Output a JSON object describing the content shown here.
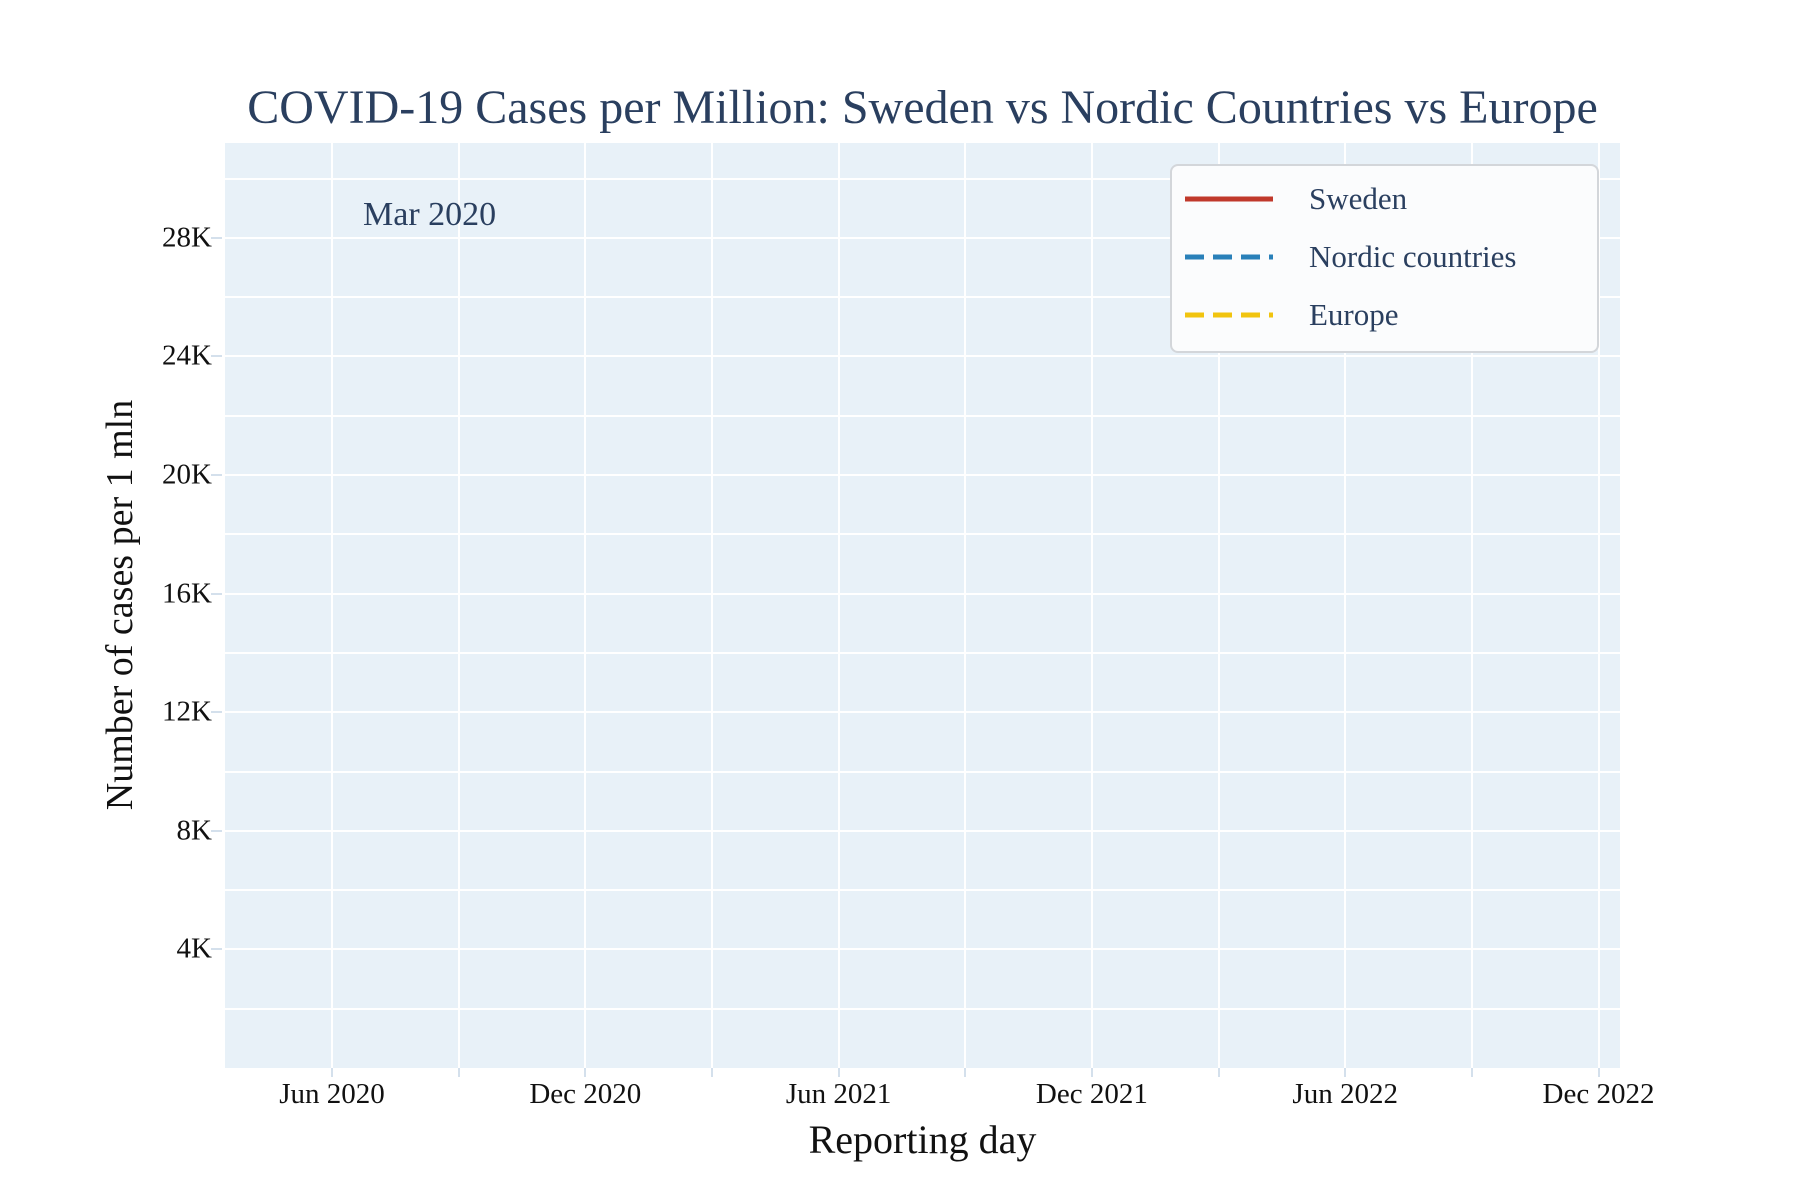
{
  "title": {
    "text": "COVID-19 Cases per Million: Sweden vs Nordic Countries vs Europe",
    "color": "#2a3f5f"
  },
  "annotation": {
    "text": "Mar 2020"
  },
  "axes": {
    "x": {
      "label": "Reporting day",
      "tick_labels": [
        "Jun 2020",
        "Dec 2020",
        "Jun 2021",
        "Dec 2021",
        "Jun 2022",
        "Dec 2022"
      ]
    },
    "y": {
      "label": "Number of cases per 1 mln",
      "tick_labels": [
        "4K",
        "8K",
        "12K",
        "16K",
        "20K",
        "24K",
        "28K"
      ]
    }
  },
  "legend": {
    "items": [
      {
        "label": "Sweden",
        "color": "#c0392b",
        "dash": "solid"
      },
      {
        "label": "Nordic countries",
        "color": "#2980b9",
        "dash": "dash"
      },
      {
        "label": "Europe",
        "color": "#f1c40f",
        "dash": "dash"
      }
    ]
  },
  "colors": {
    "plot_background": "#e8f1f8",
    "gridline": "#ffffff",
    "paper_background": "#ffffff",
    "title_text": "#2a3f5f",
    "tick_text": "#111111",
    "legend_background": "#fbfcfd",
    "legend_border": "#d3d6da",
    "sweden": "#c0392b",
    "nordic": "#2980b9",
    "europe": "#f1c40f"
  },
  "chart_data": {
    "type": "line",
    "title": "COVID-19 Cases per Million: Sweden vs Nordic Countries vs Europe",
    "xlabel": "Reporting day",
    "ylabel": "Number of cases per 1 mln",
    "x_range": [
      "mid-Mar 2020",
      "early Jan 2023"
    ],
    "ylim": [
      0,
      31200
    ],
    "x_tick_labels": [
      "Jun 2020",
      "Dec 2020",
      "Jun 2021",
      "Dec 2021",
      "Jun 2022",
      "Dec 2022"
    ],
    "x_gridline_months": [
      "Jun 2020",
      "Sep 2020",
      "Dec 2020",
      "Mar 2021",
      "Jun 2021",
      "Sep 2021",
      "Dec 2021",
      "Mar 2022",
      "Jun 2022",
      "Sep 2022",
      "Dec 2022"
    ],
    "y_tick_values": [
      4000,
      8000,
      12000,
      16000,
      20000,
      24000,
      28000
    ],
    "y_tick_labels": [
      "4K",
      "8K",
      "12K",
      "16K",
      "20K",
      "24K",
      "28K"
    ],
    "y_gridline_step": 2000,
    "grid": true,
    "legend_position": "top-right-inside",
    "animation_frame": "Mar 2020",
    "series": [
      {
        "name": "Sweden",
        "color": "#c0392b",
        "dash": "solid",
        "x": [],
        "values": []
      },
      {
        "name": "Nordic countries",
        "color": "#2980b9",
        "dash": "dash",
        "x": [],
        "values": []
      },
      {
        "name": "Europe",
        "color": "#f1c40f",
        "dash": "dash",
        "x": [],
        "values": []
      }
    ],
    "note": "Animation frame at Mar 2020: no series data is plotted yet; the plot area is empty."
  }
}
